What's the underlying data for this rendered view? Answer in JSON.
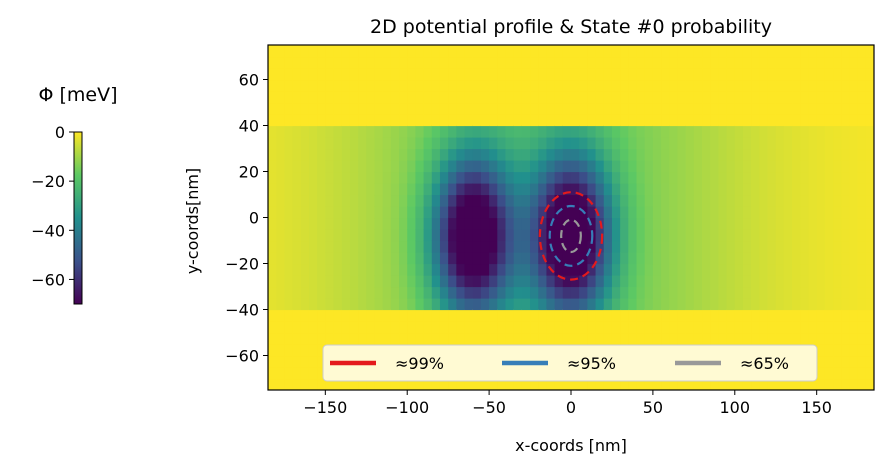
{
  "chart_data": [
    {
      "type": "heatmap",
      "title": "2D potential profile & State #0 probability",
      "xlabel": "x-coords [nm]",
      "ylabel": "y-coords[nm]",
      "xlim": [
        -185,
        185
      ],
      "ylim": [
        -75,
        75
      ],
      "xticks": [
        -150,
        -100,
        -50,
        0,
        50,
        100,
        150
      ],
      "yticks": [
        -60,
        -40,
        -20,
        0,
        20,
        40,
        60
      ],
      "xtick_labels": [
        "−150",
        "−100",
        "−50",
        "0",
        "50",
        "100",
        "150"
      ],
      "ytick_labels": [
        "−60",
        "−40",
        "−20",
        "0",
        "20",
        "40",
        "60"
      ],
      "colormap": "viridis",
      "grid": false,
      "potential": {
        "background_value": 0,
        "channel_y_range": [
          -42,
          38
        ],
        "wells": [
          {
            "x_center": -60,
            "y_center": -8,
            "depth": -70
          },
          {
            "x_center": 0,
            "y_center": -8,
            "depth": -70
          }
        ]
      },
      "contour_series": [
        {
          "name": "≈99%",
          "color": "#e41a1c",
          "x_center": 0,
          "y_center": -8,
          "x_halfwidth": 19,
          "y_halfwidth": 19
        },
        {
          "name": "≈95%",
          "color": "#377eb8",
          "x_center": 0,
          "y_center": -8,
          "x_halfwidth": 13,
          "y_halfwidth": 13
        },
        {
          "name": "≈65%",
          "color": "#999999",
          "x_center": 0,
          "y_center": -8,
          "x_halfwidth": 6,
          "y_halfwidth": 7
        }
      ],
      "legend": {
        "placement": "bottom-center",
        "ncol": 3,
        "entries": [
          "≈99%",
          "≈95%",
          "≈65%"
        ]
      }
    },
    {
      "type": "colorbar",
      "label": "Φ [meV]",
      "range": [
        -70,
        0
      ],
      "ticks": [
        0,
        -20,
        -40,
        -60
      ],
      "tick_labels": [
        "0",
        "−20",
        "−40",
        "−60"
      ]
    }
  ]
}
